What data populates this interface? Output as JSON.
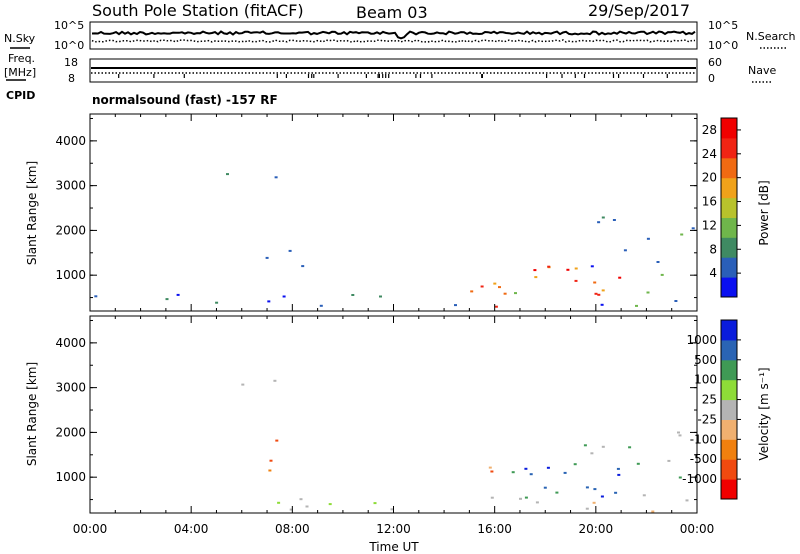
{
  "header": {
    "station": "South Pole Station (fitACF)",
    "beam": "Beam 03",
    "date": "29/Sep/2017"
  },
  "top_panels": {
    "nsky_label": "N.Sky",
    "nsearch_label": "N.Search",
    "noise_ticks_left": [
      "10^5",
      "10^0"
    ],
    "noise_ticks_right": [
      "10^5",
      "10^0"
    ],
    "freq_label_line1": "Freq.",
    "freq_label_line2": "[MHz]",
    "freq_ticks": [
      "18",
      "8"
    ],
    "nave_label": "Nave",
    "nave_ticks": [
      "60",
      "0"
    ],
    "cpid_label": "CPID",
    "cpid_text": "normalsound (fast) -157 RF"
  },
  "chart_data": [
    {
      "type": "heatmap",
      "panel": "power",
      "ylabel": "Slant Range [km]",
      "y_ticks": [
        "1000",
        "2000",
        "3000",
        "4000"
      ],
      "ylim": [
        200,
        4600
      ],
      "xlim": [
        0,
        24
      ],
      "colorbar": {
        "label": "Power [dB]",
        "ticks": [
          "4",
          "8",
          "12",
          "16",
          "20",
          "24",
          "28"
        ],
        "range": [
          0,
          30
        ],
        "colors": [
          "#0a10f0",
          "#2a5fb8",
          "#3f8a62",
          "#6fb64b",
          "#b8c22c",
          "#f0a21a",
          "#f06a12",
          "#f02414",
          "#f00000"
        ]
      },
      "scatter_regions": [
        {
          "t0": 0.0,
          "t1": 24.0,
          "r0": 250,
          "r1": 650,
          "level": "low"
        },
        {
          "t0": 5.3,
          "t1": 7.8,
          "r0": 2800,
          "r1": 3300,
          "level": "low"
        },
        {
          "t0": 6.0,
          "t1": 8.5,
          "r0": 1100,
          "r1": 1900,
          "level": "mid"
        },
        {
          "t0": 15.0,
          "t1": 16.2,
          "r0": 300,
          "r1": 1300,
          "level": "high"
        },
        {
          "t0": 16.0,
          "t1": 21.0,
          "r0": 500,
          "r1": 1300,
          "level": "high"
        },
        {
          "t0": 19.0,
          "t1": 23.8,
          "r0": 1000,
          "r1": 2400,
          "level": "low"
        }
      ]
    },
    {
      "type": "heatmap",
      "panel": "velocity",
      "ylabel": "Slant Range [km]",
      "y_ticks": [
        "1000",
        "2000",
        "3000",
        "4000"
      ],
      "ylim": [
        200,
        4600
      ],
      "xlim": [
        0,
        24
      ],
      "xlabel": "Time UT",
      "x_ticks": [
        "00:00",
        "04:00",
        "08:00",
        "12:00",
        "16:00",
        "20:00",
        "00:00"
      ],
      "colorbar": {
        "label": "Velocity [m s⁻¹]",
        "ticks": [
          "1000",
          "500",
          "100",
          "25",
          "-25",
          "-100",
          "-500",
          "-1000"
        ],
        "range": [
          -1000,
          1000
        ],
        "colors": [
          "#f00000",
          "#f04a10",
          "#f0800e",
          "#f0b070",
          "#b4b4b4",
          "#8edc38",
          "#3f9a55",
          "#2a64b4",
          "#0a1cdc"
        ]
      },
      "scatter_regions": [
        {
          "t0": 0.0,
          "t1": 24.0,
          "r0": 250,
          "r1": 650,
          "level": "gray"
        },
        {
          "t0": 5.3,
          "t1": 7.8,
          "r0": 2800,
          "r1": 3300,
          "level": "gray"
        },
        {
          "t0": 6.0,
          "t1": 8.5,
          "r0": 1100,
          "r1": 1900,
          "level": "neg"
        },
        {
          "t0": 15.0,
          "t1": 16.2,
          "r0": 300,
          "r1": 1300,
          "level": "neg"
        },
        {
          "t0": 16.0,
          "t1": 21.0,
          "r0": 500,
          "r1": 1300,
          "level": "pos"
        },
        {
          "t0": 19.0,
          "t1": 23.8,
          "r0": 1000,
          "r1": 2400,
          "level": "mix"
        }
      ]
    }
  ]
}
